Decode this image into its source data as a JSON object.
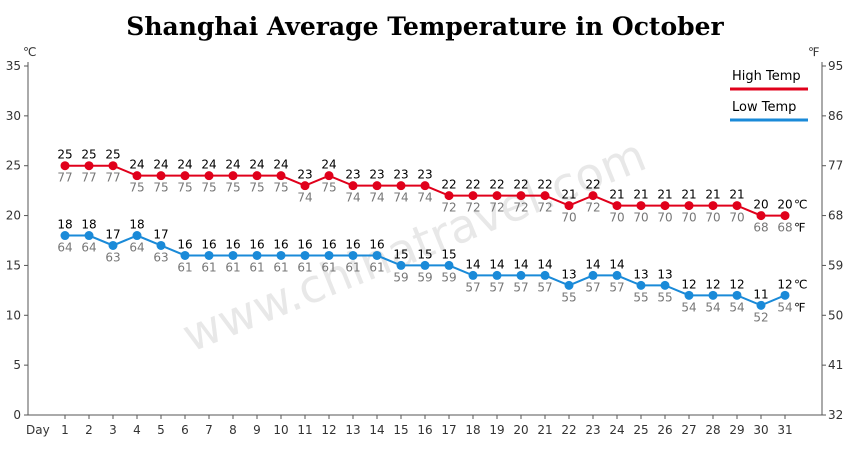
{
  "title": "Shanghai Average Temperature in October",
  "chart_data": {
    "type": "line",
    "title": "Shanghai Average Temperature in October",
    "watermark": "www.chinatravel.com",
    "xlabel": "Day",
    "categories": [
      "1",
      "2",
      "3",
      "4",
      "5",
      "6",
      "7",
      "8",
      "9",
      "10",
      "11",
      "12",
      "13",
      "14",
      "15",
      "16",
      "17",
      "18",
      "19",
      "20",
      "21",
      "22",
      "23",
      "24",
      "25",
      "26",
      "27",
      "28",
      "29",
      "30",
      "31"
    ],
    "left_axis": {
      "unit": "℃",
      "ylim": [
        0,
        35
      ],
      "ticks": [
        0,
        5,
        10,
        15,
        20,
        25,
        30,
        35
      ]
    },
    "right_axis": {
      "unit": "℉",
      "ticks": [
        32,
        41,
        50,
        59,
        68,
        77,
        86,
        95
      ]
    },
    "series": [
      {
        "name": "High Temp",
        "color": "#e0001b",
        "values": [
          25,
          25,
          25,
          24,
          24,
          24,
          24,
          24,
          24,
          24,
          23,
          24,
          23,
          23,
          23,
          23,
          22,
          22,
          22,
          22,
          22,
          21,
          22,
          21,
          21,
          21,
          21,
          21,
          21,
          20,
          20
        ],
        "values_f": [
          77,
          77,
          77,
          75,
          75,
          75,
          75,
          75,
          75,
          75,
          74,
          75,
          74,
          74,
          74,
          74,
          72,
          72,
          72,
          72,
          72,
          70,
          72,
          70,
          70,
          70,
          70,
          70,
          70,
          68,
          68
        ]
      },
      {
        "name": "Low Temp",
        "color": "#1a8ad8",
        "values": [
          18,
          18,
          17,
          18,
          17,
          16,
          16,
          16,
          16,
          16,
          16,
          16,
          16,
          16,
          15,
          15,
          15,
          14,
          14,
          14,
          14,
          13,
          14,
          14,
          13,
          13,
          12,
          12,
          12,
          11,
          12
        ],
        "values_f": [
          64,
          64,
          63,
          64,
          63,
          61,
          61,
          61,
          61,
          61,
          61,
          61,
          61,
          61,
          59,
          59,
          59,
          57,
          57,
          57,
          57,
          55,
          57,
          57,
          55,
          55,
          54,
          54,
          54,
          52,
          54
        ]
      }
    ],
    "grid": false,
    "legend": "top-right"
  }
}
